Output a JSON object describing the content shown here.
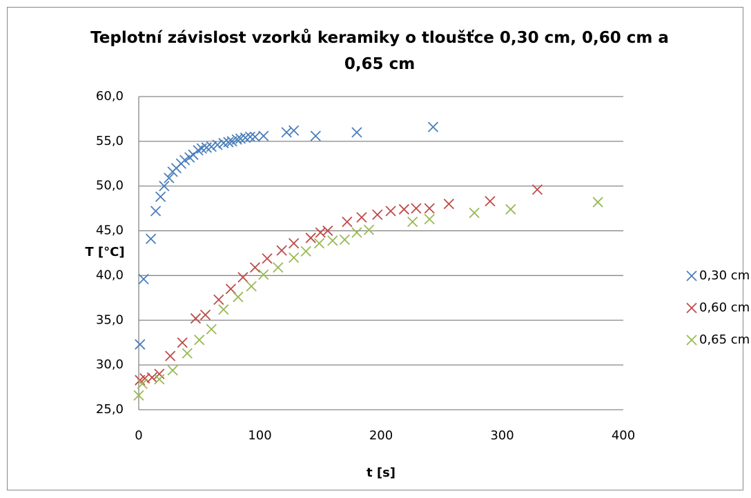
{
  "chart_data": {
    "type": "scatter",
    "title": "Teplotní závislost vzorků keramiky o tloušťce 0,30 cm, 0,60 cm a 0,65 cm",
    "x_label": "t [s]",
    "y_label": "T [°C]",
    "xlim": [
      0,
      400
    ],
    "xticks": [
      0,
      100,
      200,
      300,
      400
    ],
    "ylim": [
      25,
      60
    ],
    "yticks": [
      {
        "value": 25,
        "label": "25,0"
      },
      {
        "value": 30,
        "label": "30,0"
      },
      {
        "value": 35,
        "label": "35,0"
      },
      {
        "value": 40,
        "label": "40,0"
      },
      {
        "value": 45,
        "label": "45,0"
      },
      {
        "value": 50,
        "label": "50,0"
      },
      {
        "value": 55,
        "label": "55,0"
      },
      {
        "value": 60,
        "label": "60,0"
      }
    ],
    "grid": true,
    "legend": "right",
    "series": [
      {
        "name": "0,30 cm",
        "color": "#4a7ebb",
        "x": [
          1,
          4,
          10,
          14,
          18,
          21,
          25,
          28,
          31,
          35,
          38,
          42,
          45,
          49,
          52,
          56,
          60,
          65,
          70,
          74,
          77,
          81,
          84,
          88,
          92,
          96,
          103,
          122,
          128,
          146,
          180,
          243
        ],
        "values": [
          32.3,
          39.6,
          44.1,
          47.2,
          48.8,
          50.0,
          50.9,
          51.6,
          52.0,
          52.5,
          52.9,
          53.2,
          53.5,
          54.0,
          54.2,
          54.3,
          54.4,
          54.6,
          54.8,
          54.9,
          55.0,
          55.2,
          55.3,
          55.4,
          55.5,
          55.5,
          55.6,
          56.0,
          56.2,
          55.6,
          56.0,
          56.6
        ]
      },
      {
        "name": "0,60 cm",
        "color": "#be4b48",
        "x": [
          1,
          5,
          11,
          17,
          26,
          36,
          47,
          55,
          66,
          76,
          86,
          96,
          106,
          118,
          128,
          142,
          150,
          156,
          172,
          184,
          197,
          208,
          219,
          229,
          240,
          256,
          290,
          329
        ],
        "values": [
          28.3,
          28.5,
          28.6,
          29.0,
          31.0,
          32.5,
          35.2,
          35.6,
          37.3,
          38.5,
          39.8,
          40.9,
          41.9,
          42.8,
          43.6,
          44.2,
          44.8,
          45.0,
          46.0,
          46.5,
          46.8,
          47.2,
          47.4,
          47.5,
          47.5,
          48.0,
          48.3,
          49.6
        ]
      },
      {
        "name": "0,65 cm",
        "color": "#98b954",
        "x": [
          0,
          3,
          17,
          28,
          40,
          50,
          60,
          70,
          82,
          93,
          103,
          115,
          128,
          138,
          149,
          160,
          170,
          180,
          190,
          226,
          240,
          277,
          307,
          379
        ],
        "values": [
          26.6,
          27.9,
          28.4,
          29.4,
          31.3,
          32.8,
          34.0,
          36.2,
          37.6,
          38.8,
          40.1,
          40.9,
          42.0,
          42.7,
          43.6,
          43.9,
          44.0,
          44.8,
          45.1,
          46.0,
          46.3,
          47.0,
          47.4,
          48.2
        ]
      }
    ]
  }
}
